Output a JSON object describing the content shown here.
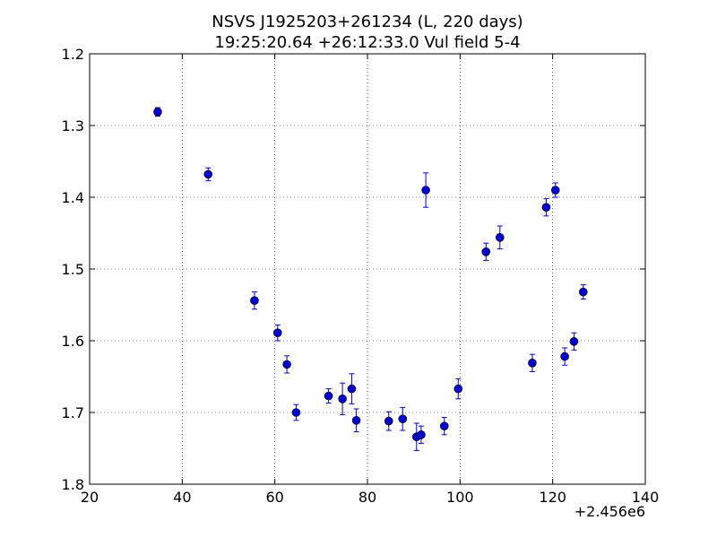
{
  "chart_data": {
    "type": "scatter",
    "title": "NSVS J1925203+261234 (L, 220 days)",
    "subtitle": "19:25:20.64 +26:12:33.0 Vul field 5-4",
    "xlabel": "",
    "ylabel": "",
    "x_offset_label": "+2.456e6",
    "xlim": [
      20,
      140
    ],
    "ylim": [
      1.2,
      1.8
    ],
    "y_inverted": true,
    "grid": true,
    "x_ticks": [
      "20",
      "40",
      "60",
      "80",
      "100",
      "120",
      "140"
    ],
    "y_ticks": [
      "1.2",
      "1.3",
      "1.4",
      "1.5",
      "1.6",
      "1.7",
      "1.8"
    ],
    "marker_color": "#0000cc",
    "errorbar_color": "#0000cc",
    "points": [
      {
        "x": 34.7,
        "y": 1.281,
        "err": 0.006
      },
      {
        "x": 45.6,
        "y": 1.368,
        "err": 0.009
      },
      {
        "x": 55.6,
        "y": 1.544,
        "err": 0.012
      },
      {
        "x": 60.6,
        "y": 1.589,
        "err": 0.011
      },
      {
        "x": 62.6,
        "y": 1.633,
        "err": 0.012
      },
      {
        "x": 64.6,
        "y": 1.7,
        "err": 0.011
      },
      {
        "x": 71.6,
        "y": 1.677,
        "err": 0.01
      },
      {
        "x": 74.6,
        "y": 1.681,
        "err": 0.022
      },
      {
        "x": 76.6,
        "y": 1.667,
        "err": 0.021
      },
      {
        "x": 77.6,
        "y": 1.711,
        "err": 0.016
      },
      {
        "x": 84.6,
        "y": 1.712,
        "err": 0.013
      },
      {
        "x": 87.6,
        "y": 1.709,
        "err": 0.016
      },
      {
        "x": 90.6,
        "y": 1.734,
        "err": 0.019
      },
      {
        "x": 91.6,
        "y": 1.731,
        "err": 0.012
      },
      {
        "x": 92.6,
        "y": 1.39,
        "err": 0.024
      },
      {
        "x": 96.6,
        "y": 1.719,
        "err": 0.012
      },
      {
        "x": 99.6,
        "y": 1.667,
        "err": 0.014
      },
      {
        "x": 105.6,
        "y": 1.476,
        "err": 0.012
      },
      {
        "x": 108.6,
        "y": 1.456,
        "err": 0.016
      },
      {
        "x": 115.6,
        "y": 1.631,
        "err": 0.012
      },
      {
        "x": 118.6,
        "y": 1.414,
        "err": 0.012
      },
      {
        "x": 120.6,
        "y": 1.39,
        "err": 0.01
      },
      {
        "x": 122.6,
        "y": 1.622,
        "err": 0.012
      },
      {
        "x": 124.6,
        "y": 1.601,
        "err": 0.012
      },
      {
        "x": 126.6,
        "y": 1.532,
        "err": 0.01
      }
    ]
  }
}
